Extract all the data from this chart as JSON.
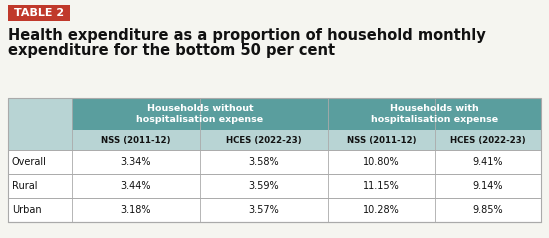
{
  "table_label": "TABLE 2",
  "title_line1": "Health expenditure as a proportion of household monthly",
  "title_line2": "expenditure for the bottom 50 per cent",
  "col_group1_header": "Households without\nhospitalisation expense",
  "col_group2_header": "Households with\nhospitalisation expense",
  "sub_col1": "NSS (2011-12)",
  "sub_col2": "HCES (2022-23)",
  "sub_col3": "NSS (2011-12)",
  "sub_col4": "HCES (2022-23)",
  "rows": [
    {
      "label": "Overall",
      "v1": "3.34%",
      "v2": "3.58%",
      "v3": "10.80%",
      "v4": "9.41%"
    },
    {
      "label": "Rural",
      "v1": "3.44%",
      "v2": "3.59%",
      "v3": "11.15%",
      "v4": "9.14%"
    },
    {
      "label": "Urban",
      "v1": "3.18%",
      "v2": "3.57%",
      "v3": "10.28%",
      "v4": "9.85%"
    }
  ],
  "header_bg": "#5a9e9e",
  "subheader_bg": "#b8d4d4",
  "table_label_bg": "#c0392b",
  "table_label_text": "#ffffff",
  "header_text": "#ffffff",
  "body_text": "#111111",
  "bg_color": "#f5f5f0",
  "border_color": "#999999"
}
